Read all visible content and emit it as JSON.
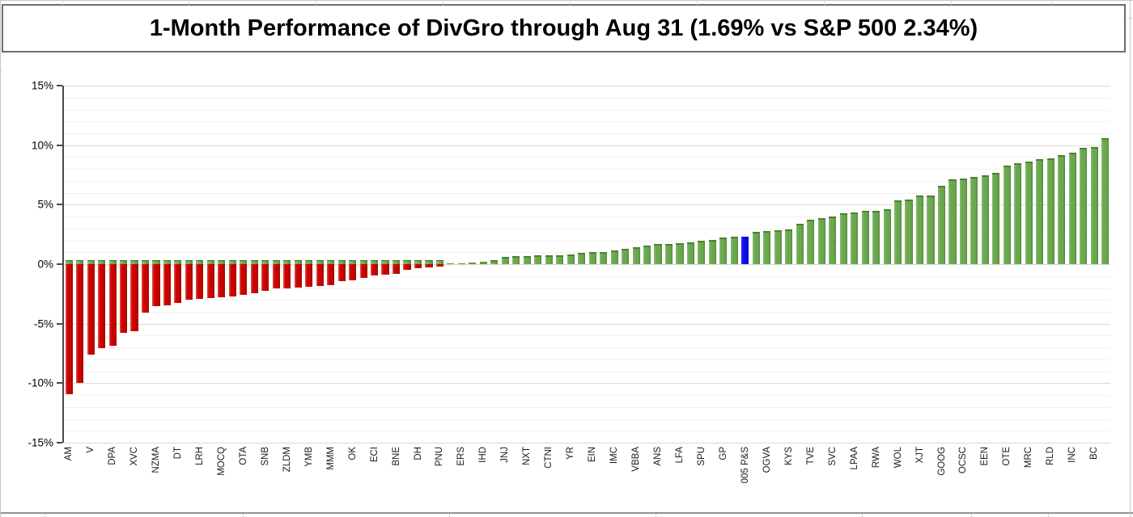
{
  "title": "1-Month Performance of DivGro through Aug 31 (1.69% vs S&P 500 2.34%)",
  "y_axis": {
    "tick_labels": [
      "15%",
      "10%",
      "5%",
      "0%",
      "-5%",
      "-10%",
      "-15%"
    ],
    "tick_values": [
      15,
      10,
      5,
      0,
      -5,
      -10,
      -15
    ],
    "min": -15,
    "max": 15,
    "major_step_pct": 5,
    "minor_step_pct": 1
  },
  "colors": {
    "positive": "#6aa84f",
    "negative": "#cc0000",
    "benchmark": "#0b0bee",
    "major_grid": "#d9d9d9",
    "minor_grid": "#f2f2f2"
  },
  "chart_data": {
    "type": "bar",
    "title": "1-Month Performance of DivGro through Aug 31 (1.69% vs S&P 500 2.34%)",
    "xlabel": "",
    "ylabel": "",
    "ylim": [
      -15,
      15
    ],
    "grid": "major every 5%, minor every 1%",
    "legend_position": "none",
    "divgro_return_pct": 1.69,
    "sp500_return_pct": 2.34,
    "benchmark_label": "S&P 500",
    "note": "bars sorted ascending; ticker labels shown on alternating bars; empty label = unlabeled bar",
    "bars": [
      {
        "t": "MA",
        "v": -10.9
      },
      {
        "t": "",
        "v": -10.0
      },
      {
        "t": "V",
        "v": -7.6
      },
      {
        "t": "",
        "v": -7.05
      },
      {
        "t": "APD",
        "v": -6.85
      },
      {
        "t": "",
        "v": -5.75
      },
      {
        "t": "CVX",
        "v": -5.65
      },
      {
        "t": "",
        "v": -4.05
      },
      {
        "t": "AMZN",
        "v": -3.55
      },
      {
        "t": "",
        "v": -3.45
      },
      {
        "t": "TD",
        "v": -3.25
      },
      {
        "t": "",
        "v": -2.95
      },
      {
        "t": "HRL",
        "v": -2.9
      },
      {
        "t": "",
        "v": -2.85
      },
      {
        "t": "QCOM",
        "v": -2.78
      },
      {
        "t": "",
        "v": -2.7
      },
      {
        "t": "ATO",
        "v": -2.6
      },
      {
        "t": "",
        "v": -2.45
      },
      {
        "t": "BNS",
        "v": -2.25
      },
      {
        "t": "",
        "v": -2.05
      },
      {
        "t": "MDLZ",
        "v": -2.0
      },
      {
        "t": "",
        "v": -1.95
      },
      {
        "t": "BMY",
        "v": -1.9
      },
      {
        "t": "",
        "v": -1.85
      },
      {
        "t": "MMM",
        "v": -1.75
      },
      {
        "t": "",
        "v": -1.45
      },
      {
        "t": "KO",
        "v": -1.35
      },
      {
        "t": "",
        "v": -1.15
      },
      {
        "t": "ICE",
        "v": -0.97
      },
      {
        "t": "",
        "v": -0.9
      },
      {
        "t": "ENB",
        "v": -0.78
      },
      {
        "t": "",
        "v": -0.45
      },
      {
        "t": "HD",
        "v": -0.36
      },
      {
        "t": "",
        "v": -0.28
      },
      {
        "t": "UNP",
        "v": -0.2
      },
      {
        "t": "",
        "v": 0.06
      },
      {
        "t": "SRE",
        "v": 0.09
      },
      {
        "t": "",
        "v": 0.13
      },
      {
        "t": "DHI",
        "v": 0.18
      },
      {
        "t": "",
        "v": 0.32
      },
      {
        "t": "JNJ",
        "v": 0.6
      },
      {
        "t": "",
        "v": 0.65
      },
      {
        "t": "TXN",
        "v": 0.68
      },
      {
        "t": "",
        "v": 0.72
      },
      {
        "t": "INTC",
        "v": 0.75
      },
      {
        "t": "",
        "v": 0.78
      },
      {
        "t": "RY",
        "v": 0.82
      },
      {
        "t": "",
        "v": 0.95
      },
      {
        "t": "NIE",
        "v": 1.0
      },
      {
        "t": "",
        "v": 1.05
      },
      {
        "t": "CMI",
        "v": 1.18
      },
      {
        "t": "",
        "v": 1.27
      },
      {
        "t": "ABBV",
        "v": 1.41
      },
      {
        "t": "",
        "v": 1.57
      },
      {
        "t": "SNA",
        "v": 1.7
      },
      {
        "t": "",
        "v": 1.73
      },
      {
        "t": "AFL",
        "v": 1.8
      },
      {
        "t": "",
        "v": 1.86
      },
      {
        "t": "UPS",
        "v": 2.0
      },
      {
        "t": "",
        "v": 2.05
      },
      {
        "t": "PG",
        "v": 2.22
      },
      {
        "t": "",
        "v": 2.28
      },
      {
        "t": "S&P 500",
        "v": 2.34
      },
      {
        "t": "",
        "v": 2.72
      },
      {
        "t": "AVGO",
        "v": 2.78
      },
      {
        "t": "",
        "v": 2.86
      },
      {
        "t": "SYK",
        "v": 2.91
      },
      {
        "t": "",
        "v": 3.39
      },
      {
        "t": "EVT",
        "v": 3.77
      },
      {
        "t": "",
        "v": 3.84
      },
      {
        "t": "CVS",
        "v": 4.0
      },
      {
        "t": "",
        "v": 4.3
      },
      {
        "t": "AAPL",
        "v": 4.36
      },
      {
        "t": "",
        "v": 4.45
      },
      {
        "t": "AWR",
        "v": 4.5
      },
      {
        "t": "",
        "v": 4.6
      },
      {
        "t": "LOW",
        "v": 5.35
      },
      {
        "t": "",
        "v": 5.41
      },
      {
        "t": "TJX",
        "v": 5.75
      },
      {
        "t": "",
        "v": 5.8
      },
      {
        "t": "GOOG",
        "v": 6.6
      },
      {
        "t": "",
        "v": 7.1
      },
      {
        "t": "CSCO",
        "v": 7.2
      },
      {
        "t": "",
        "v": 7.35
      },
      {
        "t": "NEE",
        "v": 7.5
      },
      {
        "t": "",
        "v": 7.7
      },
      {
        "t": "ETO",
        "v": 8.3
      },
      {
        "t": "",
        "v": 8.48
      },
      {
        "t": "CRM",
        "v": 8.6
      },
      {
        "t": "",
        "v": 8.85
      },
      {
        "t": "DLR",
        "v": 8.9
      },
      {
        "t": "",
        "v": 9.15
      },
      {
        "t": "CNI",
        "v": 9.4
      },
      {
        "t": "",
        "v": 9.8
      },
      {
        "t": "CB",
        "v": 9.85
      },
      {
        "t": "",
        "v": 10.6
      }
    ]
  }
}
